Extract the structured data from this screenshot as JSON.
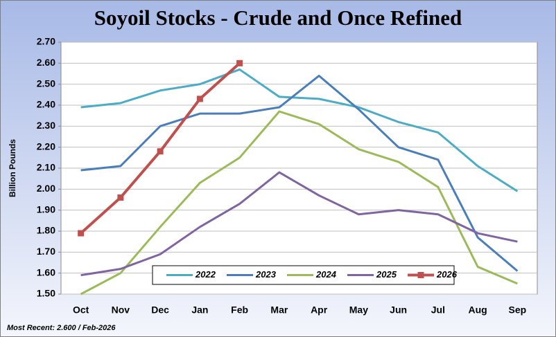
{
  "chart_data": {
    "type": "line",
    "title": "Soyoil Stocks - Crude and Once Refined",
    "y_label": "Billion Pounds",
    "footnote": "Most Recent: 2.600 / Feb-2026",
    "categories": [
      "Oct",
      "Nov",
      "Dec",
      "Jan",
      "Feb",
      "Mar",
      "Apr",
      "May",
      "Jun",
      "Jul",
      "Aug",
      "Sep"
    ],
    "ylim": [
      1.5,
      2.7
    ],
    "yticks": [
      {
        "value": 1.5,
        "label": "1.50"
      },
      {
        "value": 1.6,
        "label": "1.60"
      },
      {
        "value": 1.7,
        "label": "1.70"
      },
      {
        "value": 1.8,
        "label": "1.80"
      },
      {
        "value": 1.9,
        "label": "1.90"
      },
      {
        "value": 2.0,
        "label": "2.00"
      },
      {
        "value": 2.1,
        "label": "2.10"
      },
      {
        "value": 2.2,
        "label": "2.20"
      },
      {
        "value": 2.3,
        "label": "2.30"
      },
      {
        "value": 2.4,
        "label": "2.40"
      },
      {
        "value": 2.5,
        "label": "2.50"
      },
      {
        "value": 2.6,
        "label": "2.60"
      },
      {
        "value": 2.7,
        "label": "2.70"
      }
    ],
    "grid": true,
    "legend": "bottom",
    "series": [
      {
        "name": "2022",
        "color": "#4bacc6",
        "values": [
          2.39,
          2.41,
          2.47,
          2.5,
          2.57,
          2.44,
          2.43,
          2.39,
          2.32,
          2.27,
          2.11,
          1.99
        ]
      },
      {
        "name": "2023",
        "color": "#4a7ebb",
        "values": [
          2.09,
          2.11,
          2.3,
          2.36,
          2.36,
          2.39,
          2.54,
          2.38,
          2.2,
          2.14,
          1.77,
          1.61
        ]
      },
      {
        "name": "2024",
        "color": "#9bbb59",
        "values": [
          1.5,
          1.6,
          1.82,
          2.03,
          2.15,
          2.37,
          2.31,
          2.19,
          2.13,
          2.01,
          1.63,
          1.55
        ]
      },
      {
        "name": "2025",
        "color": "#8064a2",
        "values": [
          1.59,
          1.62,
          1.69,
          1.82,
          1.93,
          2.08,
          1.97,
          1.88,
          1.9,
          1.88,
          1.79,
          1.75
        ]
      },
      {
        "name": "2026",
        "color": "#c0504d",
        "marker": "square",
        "values": [
          1.79,
          1.96,
          2.18,
          2.43,
          2.6,
          null,
          null,
          null,
          null,
          null,
          null,
          null
        ]
      }
    ]
  }
}
